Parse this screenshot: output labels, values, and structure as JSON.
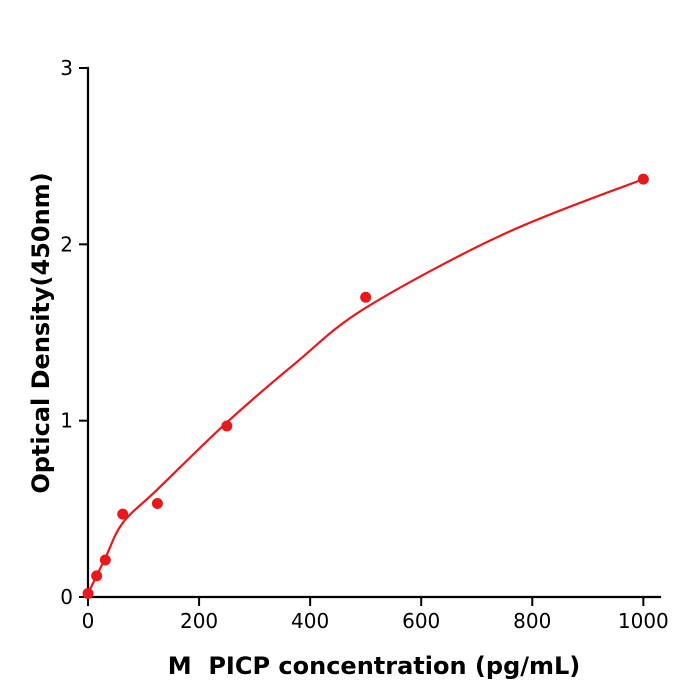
{
  "chart_data": {
    "type": "scatter",
    "title": "",
    "xlabel": "M  PICP concentration (pg/mL)",
    "ylabel": "Optical Density(450nm)",
    "xlim": [
      0,
      1030
    ],
    "ylim": [
      0,
      3
    ],
    "x_ticks": [
      0,
      200,
      400,
      600,
      800,
      1000
    ],
    "y_ticks": [
      0,
      1,
      2,
      3
    ],
    "grid": false,
    "legend": "none",
    "point_color": "#e8191c",
    "line_color": "#e8191c",
    "axis_color": "#000000",
    "series": [
      {
        "name": "standard-points",
        "type": "scatter",
        "x": [
          0,
          15.6,
          31.2,
          62.5,
          125,
          250,
          500,
          1000
        ],
        "y": [
          0.02,
          0.12,
          0.21,
          0.47,
          0.53,
          0.97,
          1.7,
          2.37
        ]
      },
      {
        "name": "fit-curve",
        "type": "line",
        "x": [
          0,
          31,
          62.5,
          125,
          250,
          375,
          500,
          750,
          1000
        ],
        "y": [
          0.02,
          0.22,
          0.42,
          0.61,
          0.99,
          1.33,
          1.64,
          2.06,
          2.37
        ]
      }
    ]
  }
}
